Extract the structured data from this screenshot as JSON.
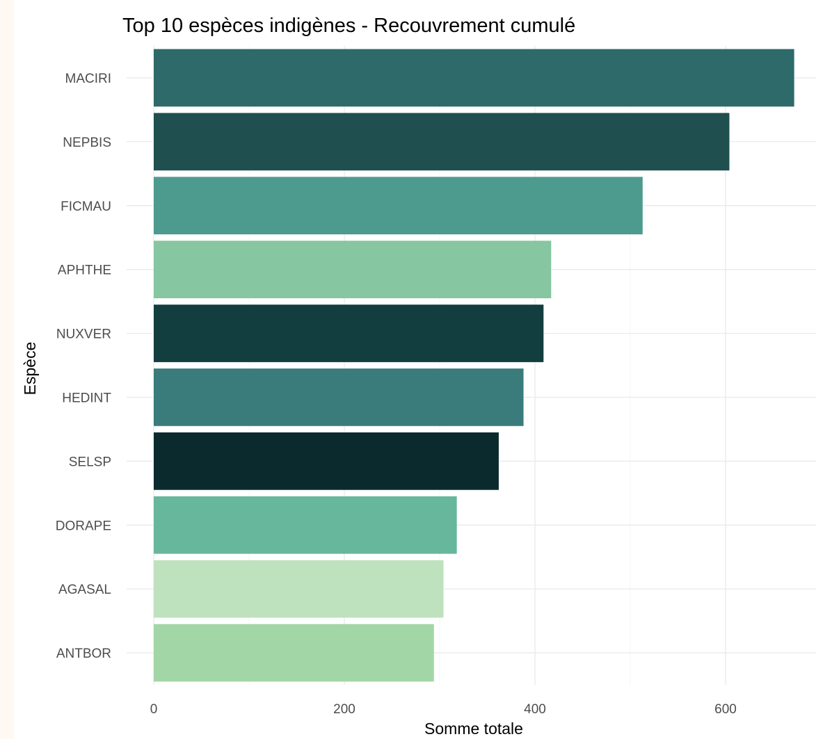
{
  "chart_data": {
    "type": "bar",
    "orientation": "horizontal",
    "title": "Top 10 espèces indigènes - Recouvrement cumulé",
    "xlabel": "Somme totale",
    "ylabel": "Espèce",
    "categories": [
      "MACIRI",
      "NEPBIS",
      "FICMAU",
      "APHTHE",
      "NUXVER",
      "HEDINT",
      "SELSP",
      "DORAPE",
      "AGASAL",
      "ANTBOR"
    ],
    "values": [
      672,
      604,
      513,
      417,
      409,
      388,
      362,
      318,
      304,
      294
    ],
    "colors": [
      "#2d6a69",
      "#1f4f4f",
      "#4d9b8f",
      "#86c6a0",
      "#123e3f",
      "#397c7b",
      "#0b2a2e",
      "#67b79d",
      "#bfe2be",
      "#a2d6a6"
    ],
    "xticks": [
      0,
      200,
      400,
      600
    ],
    "xtick_labels": [
      "0",
      "200",
      "400",
      "600"
    ],
    "xlim": [
      0,
      672
    ],
    "grid": true,
    "legend": "none"
  }
}
